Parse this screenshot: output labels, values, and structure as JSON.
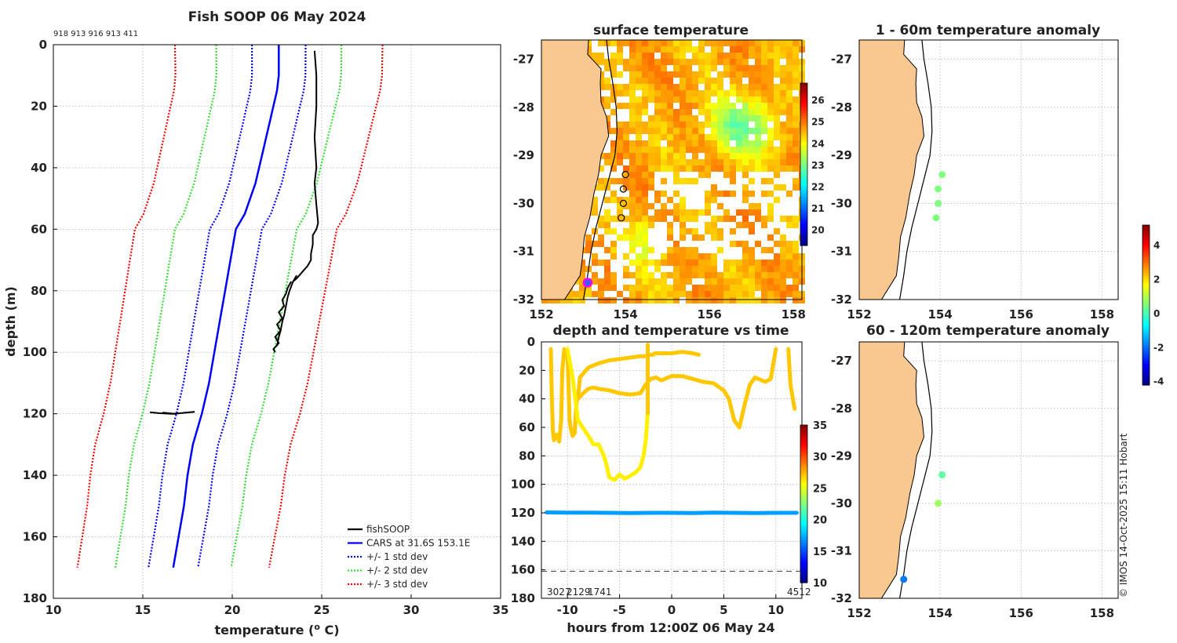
{
  "figure": {
    "copyright": "© IMOS 14-Oct-2025 15:11 Hobart"
  },
  "chart_data": [
    {
      "id": "profile",
      "type": "line",
      "title": "Fish SOOP 06 May 2024",
      "xlabel": "temperature (",
      "xlabel_sup": "o",
      "xlabel_end": " C)",
      "ylabel": "depth (m)",
      "xlim": [
        10,
        35
      ],
      "ylim": [
        180,
        0
      ],
      "xticks": [
        10,
        15,
        20,
        25,
        30,
        35
      ],
      "yticks": [
        0,
        20,
        40,
        60,
        80,
        100,
        120,
        140,
        160,
        180
      ],
      "top_annotation": "918 913 916 913 411",
      "legend": [
        "fishSOOP",
        "CARS at 31.6S 153.1E",
        "+/- 1 std dev",
        "+/- 2 std dev",
        "+/- 3 std dev"
      ],
      "colors": {
        "fish": "#000000",
        "cars": "#0000ff",
        "sd1": "#0000ff",
        "sd2": "#33dd33",
        "sd3": "#ff0000"
      },
      "cars_depth": [
        0,
        5,
        10,
        15,
        20,
        25,
        30,
        35,
        40,
        45,
        50,
        55,
        60,
        70,
        80,
        90,
        100,
        110,
        120,
        130,
        140,
        150,
        160,
        170
      ],
      "cars_temp": [
        22.6,
        22.6,
        22.6,
        22.5,
        22.3,
        22.1,
        21.9,
        21.7,
        21.5,
        21.3,
        21.0,
        20.7,
        20.2,
        19.9,
        19.6,
        19.3,
        19.0,
        18.7,
        18.3,
        17.8,
        17.5,
        17.3,
        17.0,
        16.7
      ],
      "sd_offsets": [
        1.5,
        3.5,
        5.8
      ],
      "fish_casts": [
        {
          "depth": [
            2,
            10,
            20,
            30,
            40,
            45,
            52,
            58,
            60,
            62,
            65,
            68,
            70,
            72,
            74,
            76,
            77
          ],
          "temp": [
            24.6,
            24.7,
            24.7,
            24.6,
            24.7,
            24.6,
            24.7,
            24.8,
            24.7,
            24.5,
            24.5,
            24.4,
            24.4,
            24.2,
            23.9,
            23.6,
            23.4
          ]
        },
        {
          "depth": [
            77,
            79,
            81,
            83,
            85,
            87,
            89,
            91,
            93,
            95,
            97,
            99,
            100
          ],
          "temp": [
            23.3,
            23.1,
            23.0,
            22.8,
            22.9,
            22.6,
            22.8,
            22.5,
            22.7,
            22.4,
            22.6,
            22.3,
            22.4
          ]
        },
        {
          "depth": [
            75,
            77,
            80,
            82,
            85,
            88,
            90,
            93,
            95,
            98
          ],
          "temp": [
            23.6,
            23.4,
            23.2,
            23.1,
            23.0,
            22.9,
            22.8,
            22.7,
            22.6,
            22.5
          ]
        },
        {
          "depth": [
            119.5,
            119.8,
            120,
            119.7,
            119.4,
            119.6,
            120,
            119.6
          ],
          "temp": [
            15.4,
            15.9,
            16.6,
            17.3,
            17.9,
            17.4,
            16.8,
            16.1
          ]
        }
      ]
    },
    {
      "id": "sst_map",
      "type": "heatmap",
      "title": "surface temperature",
      "xlim": [
        152,
        158.2
      ],
      "ylim": [
        -32,
        -26.6
      ],
      "xticks": [
        152,
        154,
        156,
        158
      ],
      "yticks": [
        -27,
        -28,
        -29,
        -30,
        -31,
        -32
      ],
      "colorbar": {
        "min": 19.3,
        "max": 26.8,
        "ticks": [
          20,
          21,
          22,
          23,
          24,
          25,
          26
        ]
      },
      "stations": {
        "lon": [
          154.0,
          153.95,
          153.95,
          153.9
        ],
        "lat": [
          -29.4,
          -29.7,
          -30.0,
          -30.3
        ]
      },
      "highlight": {
        "lon": 153.1,
        "lat": -31.65
      }
    },
    {
      "id": "depth_time",
      "type": "scatter",
      "title": "depth and temperature vs time",
      "xlabel": "hours from 12:00Z 06 May 24",
      "xlim": [
        -12.5,
        12.5
      ],
      "ylim": [
        180,
        0
      ],
      "xticks": [
        -10,
        -5,
        0,
        5,
        10
      ],
      "yticks": [
        0,
        20,
        40,
        60,
        80,
        100,
        120,
        140,
        160,
        180
      ],
      "colorbar": {
        "min": 10,
        "max": 35,
        "ticks": [
          10,
          15,
          20,
          25,
          30,
          35
        ]
      },
      "dashed_depth": 161,
      "bottom_labels": [
        "3027",
        "2129",
        "1741",
        "4512"
      ],
      "tracks": [
        {
          "temp": 27,
          "hours": [
            -11.6,
            -11.5,
            -11.4,
            -11.3,
            -11.0,
            -10.8,
            -10.6,
            -10.5,
            -10.3,
            -10.0,
            -9.9,
            -9.8,
            -9.7,
            -9.5,
            -9.3,
            -9.2,
            -9.1
          ],
          "depth": [
            5,
            40,
            62,
            69,
            65,
            70,
            55,
            20,
            5,
            10,
            30,
            55,
            60,
            66,
            64,
            50,
            40
          ]
        },
        {
          "temp": 27,
          "hours": [
            -9.0,
            -8.8,
            -8.0,
            -7.0,
            -6.0,
            -5.0,
            -4.0,
            -3.0,
            -2.5,
            -2.0,
            -1.8,
            -1.6,
            -1.0,
            0.0,
            1.0,
            2.0,
            2.6
          ],
          "depth": [
            40,
            25,
            18,
            15,
            13,
            12,
            11,
            10,
            10,
            9,
            9,
            8,
            8,
            8,
            7,
            8,
            9
          ]
        },
        {
          "temp": 27,
          "hours": [
            -9.0,
            -8.5,
            -8.0,
            -7.5,
            -7.0,
            -6.0,
            -5.0,
            -4.0,
            -3.0,
            -2.5,
            -2.0,
            -1.5,
            -1.0,
            0.0,
            1.0,
            2.0,
            3.0,
            4.0,
            5.0,
            5.5,
            6.0,
            6.5,
            7.0,
            7.5,
            8.0,
            9.0,
            9.5,
            10.0
          ],
          "depth": [
            40,
            36,
            33,
            32,
            33,
            34,
            36,
            37,
            36,
            30,
            26,
            25,
            27,
            24,
            24,
            26,
            28,
            29,
            34,
            40,
            55,
            60,
            44,
            30,
            25,
            28,
            26,
            5
          ]
        },
        {
          "temp": 26,
          "hours": [
            -10.0,
            -9.5,
            -9.0,
            -8.0,
            -7.5,
            -7.0,
            -6.5,
            -6.2,
            -6.0,
            -5.5,
            -5.0,
            -4.5,
            -4.0,
            -3.5,
            -3.0,
            -2.7,
            -2.5,
            -2.3
          ],
          "depth": [
            5,
            25,
            55,
            66,
            72,
            72,
            80,
            88,
            95,
            97,
            93,
            96,
            94,
            92,
            88,
            80,
            70,
            50
          ]
        },
        {
          "temp": 27,
          "hours": [
            -2.3,
            -2.3,
            -2.3,
            -2.3
          ],
          "depth": [
            50,
            35,
            20,
            2
          ]
        },
        {
          "temp": 27,
          "hours": [
            11.2,
            11.4,
            11.8
          ],
          "depth": [
            5,
            30,
            47
          ]
        },
        {
          "temp": 17,
          "hours": [
            -12.0,
            -10.0,
            -8.0,
            -6.0,
            -4.0,
            -2.0,
            0.0,
            2.0,
            4.0,
            6.0,
            8.0,
            10.0,
            12.0
          ],
          "depth": [
            119.7,
            119.9,
            119.9,
            120.0,
            120.1,
            120.0,
            120.0,
            120.1,
            119.9,
            120.0,
            120.1,
            120.0,
            120.0
          ]
        }
      ]
    },
    {
      "id": "anom_1_60",
      "type": "scatter",
      "title": "1 - 60m temperature anomaly",
      "xlim": [
        152,
        158.4
      ],
      "ylim": [
        -32,
        -26.6
      ],
      "xticks": [
        152,
        154,
        156,
        158
      ],
      "yticks": [
        -27,
        -28,
        -29,
        -30,
        -31,
        -32
      ],
      "points": {
        "lon": [
          154.05,
          153.95,
          153.95,
          153.9
        ],
        "lat": [
          -29.4,
          -29.7,
          -30.0,
          -30.3
        ],
        "anomaly": [
          0.5,
          0.5,
          0.5,
          0.5
        ]
      }
    },
    {
      "id": "anom_60_120",
      "type": "scatter",
      "title": "60 - 120m temperature anomaly",
      "xlim": [
        152,
        158.4
      ],
      "ylim": [
        -32,
        -26.6
      ],
      "xticks": [
        152,
        154,
        156,
        158
      ],
      "yticks": [
        -27,
        -28,
        -29,
        -30,
        -31,
        -32
      ],
      "points": {
        "lon": [
          154.05,
          153.95,
          153.1
        ],
        "lat": [
          -29.4,
          -30.0,
          -31.6
        ],
        "anomaly": [
          0.2,
          0.8,
          -1.9
        ]
      }
    },
    {
      "id": "anom_colorbar",
      "type": "heatmap",
      "colorbar": {
        "min": -4.2,
        "max": 5.2,
        "ticks": [
          -4,
          -2,
          0,
          2,
          4
        ]
      }
    }
  ]
}
